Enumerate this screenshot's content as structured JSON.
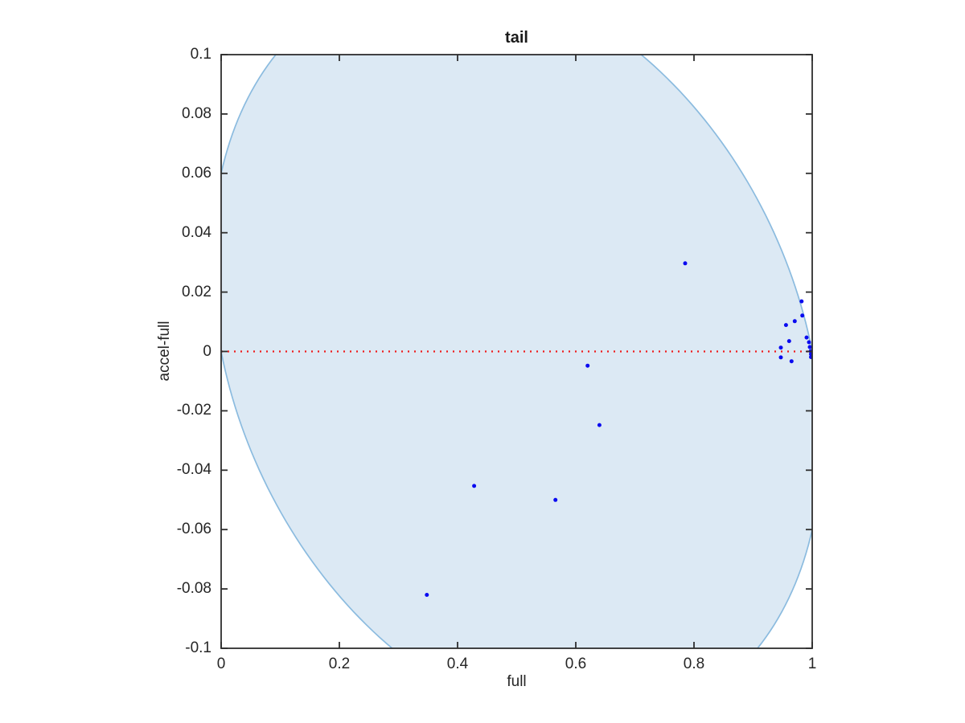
{
  "window": {
    "background": "#ffffff"
  },
  "chart_data": {
    "type": "scatter",
    "title": "tail",
    "xlabel": "full",
    "ylabel": "accel-full",
    "xlim": [
      0,
      1
    ],
    "ylim": [
      -0.1,
      0.1
    ],
    "x_ticks": [
      0,
      0.2,
      0.4,
      0.6,
      0.8,
      1
    ],
    "x_tick_labels": [
      "0",
      "0.2",
      "0.4",
      "0.6",
      "0.8",
      "1"
    ],
    "y_ticks": [
      -0.1,
      -0.08,
      -0.06,
      -0.04,
      -0.02,
      0,
      0.02,
      0.04,
      0.06,
      0.08,
      0.1
    ],
    "y_tick_labels": [
      "-0.1",
      "-0.08",
      "-0.06",
      "-0.04",
      "-0.02",
      "0",
      "0.02",
      "0.04",
      "0.06",
      "0.08",
      "0.1"
    ],
    "grid": false,
    "legend": false,
    "box": true,
    "tick_dir": "in",
    "series": [
      {
        "name": "scatter-points",
        "type": "scatter",
        "marker": "dot",
        "marker_px": 5,
        "color": "#0a0af0",
        "points": [
          [
            0.785,
            0.0297
          ],
          [
            0.982,
            0.0169
          ],
          [
            0.9832,
            0.0121
          ],
          [
            0.9705,
            0.0102
          ],
          [
            0.9556,
            0.0089
          ],
          [
            0.9905,
            0.0047
          ],
          [
            0.961,
            0.0035
          ],
          [
            0.9946,
            0.0031
          ],
          [
            0.9469,
            0.0013
          ],
          [
            0.9959,
            0.0015
          ],
          [
            0.9973,
            0.0001
          ],
          [
            0.998,
            -0.0009
          ],
          [
            0.998,
            -0.0019
          ],
          [
            0.947,
            -0.002
          ],
          [
            0.965,
            -0.0033
          ],
          [
            0.62,
            -0.0048
          ],
          [
            0.64,
            -0.0248
          ],
          [
            0.428,
            -0.0453
          ],
          [
            0.5656,
            -0.05
          ],
          [
            0.348,
            -0.082
          ]
        ]
      },
      {
        "name": "zero-reference-line",
        "type": "line",
        "style": "dotted",
        "color": "#ef1c1c",
        "points": [
          [
            0,
            0
          ],
          [
            1,
            0
          ]
        ]
      }
    ],
    "region": {
      "name": "shaded-ellipse",
      "shape": "rotated-ellipse",
      "fill": "#dce9f4",
      "edge_color": "#8bbbdf",
      "cx": 0.5,
      "cy": 0,
      "ax": 0.5155,
      "bx": -0.0309,
      "by": 0.1234
    }
  },
  "colors": {
    "frame": "#2e2e2e",
    "text": "#262626",
    "background": "#ffffff"
  }
}
